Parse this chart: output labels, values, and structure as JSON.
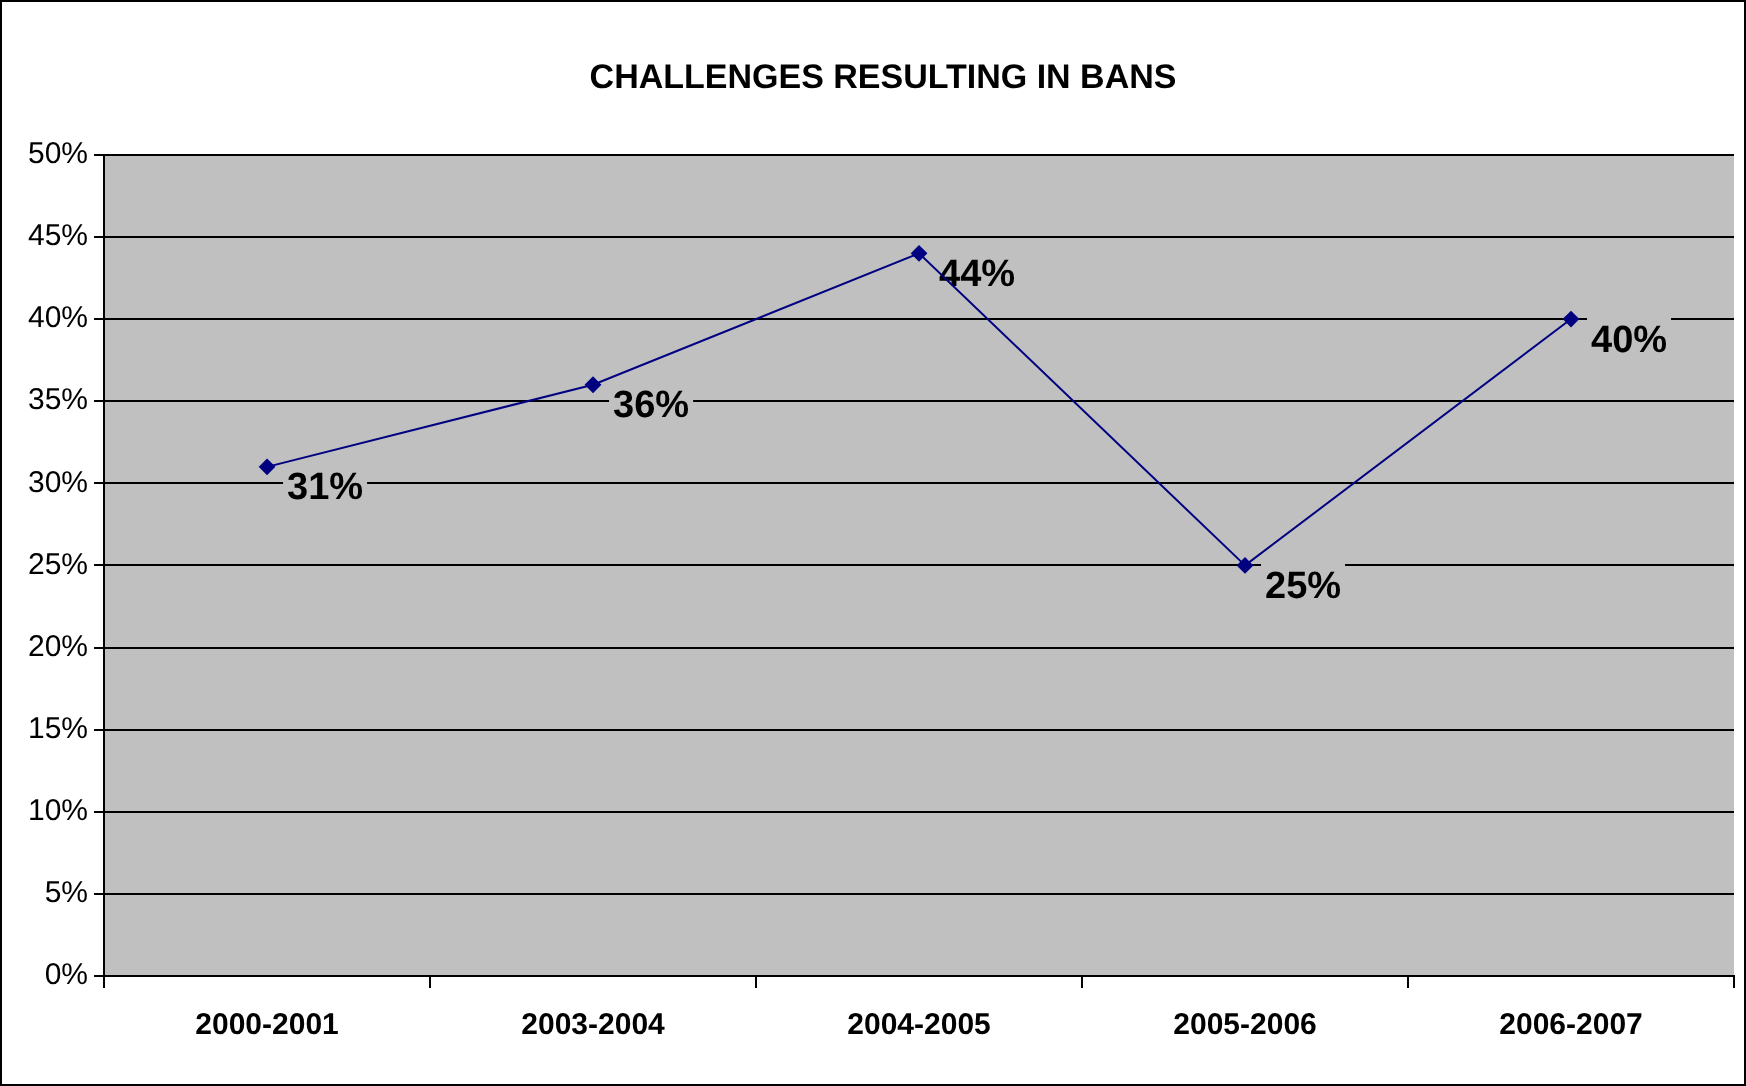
{
  "chart_data": {
    "type": "line",
    "title": "CHALLENGES RESULTING IN BANS",
    "categories": [
      "2000-2001",
      "2003-2004",
      "2004-2005",
      "2005-2006",
      "2006-2007"
    ],
    "series": [
      {
        "color": "#000080",
        "values": [
          31,
          36,
          44,
          25,
          40
        ],
        "value_labels": [
          "31%",
          "36%",
          "44%",
          "25%",
          "40%"
        ]
      }
    ],
    "ylim": [
      0,
      50
    ],
    "yticks": [
      {
        "value": 0,
        "label": "0%"
      },
      {
        "value": 5,
        "label": "5%"
      },
      {
        "value": 10,
        "label": "10%"
      },
      {
        "value": 15,
        "label": "15%"
      },
      {
        "value": 20,
        "label": "20%"
      },
      {
        "value": 25,
        "label": "25%"
      },
      {
        "value": 30,
        "label": "30%"
      },
      {
        "value": 35,
        "label": "35%"
      },
      {
        "value": 40,
        "label": "40%"
      },
      {
        "value": 45,
        "label": "45%"
      },
      {
        "value": 50,
        "label": "50%"
      }
    ],
    "grid": "y",
    "legend": false,
    "marker": "diamond",
    "line_style": "solid"
  }
}
